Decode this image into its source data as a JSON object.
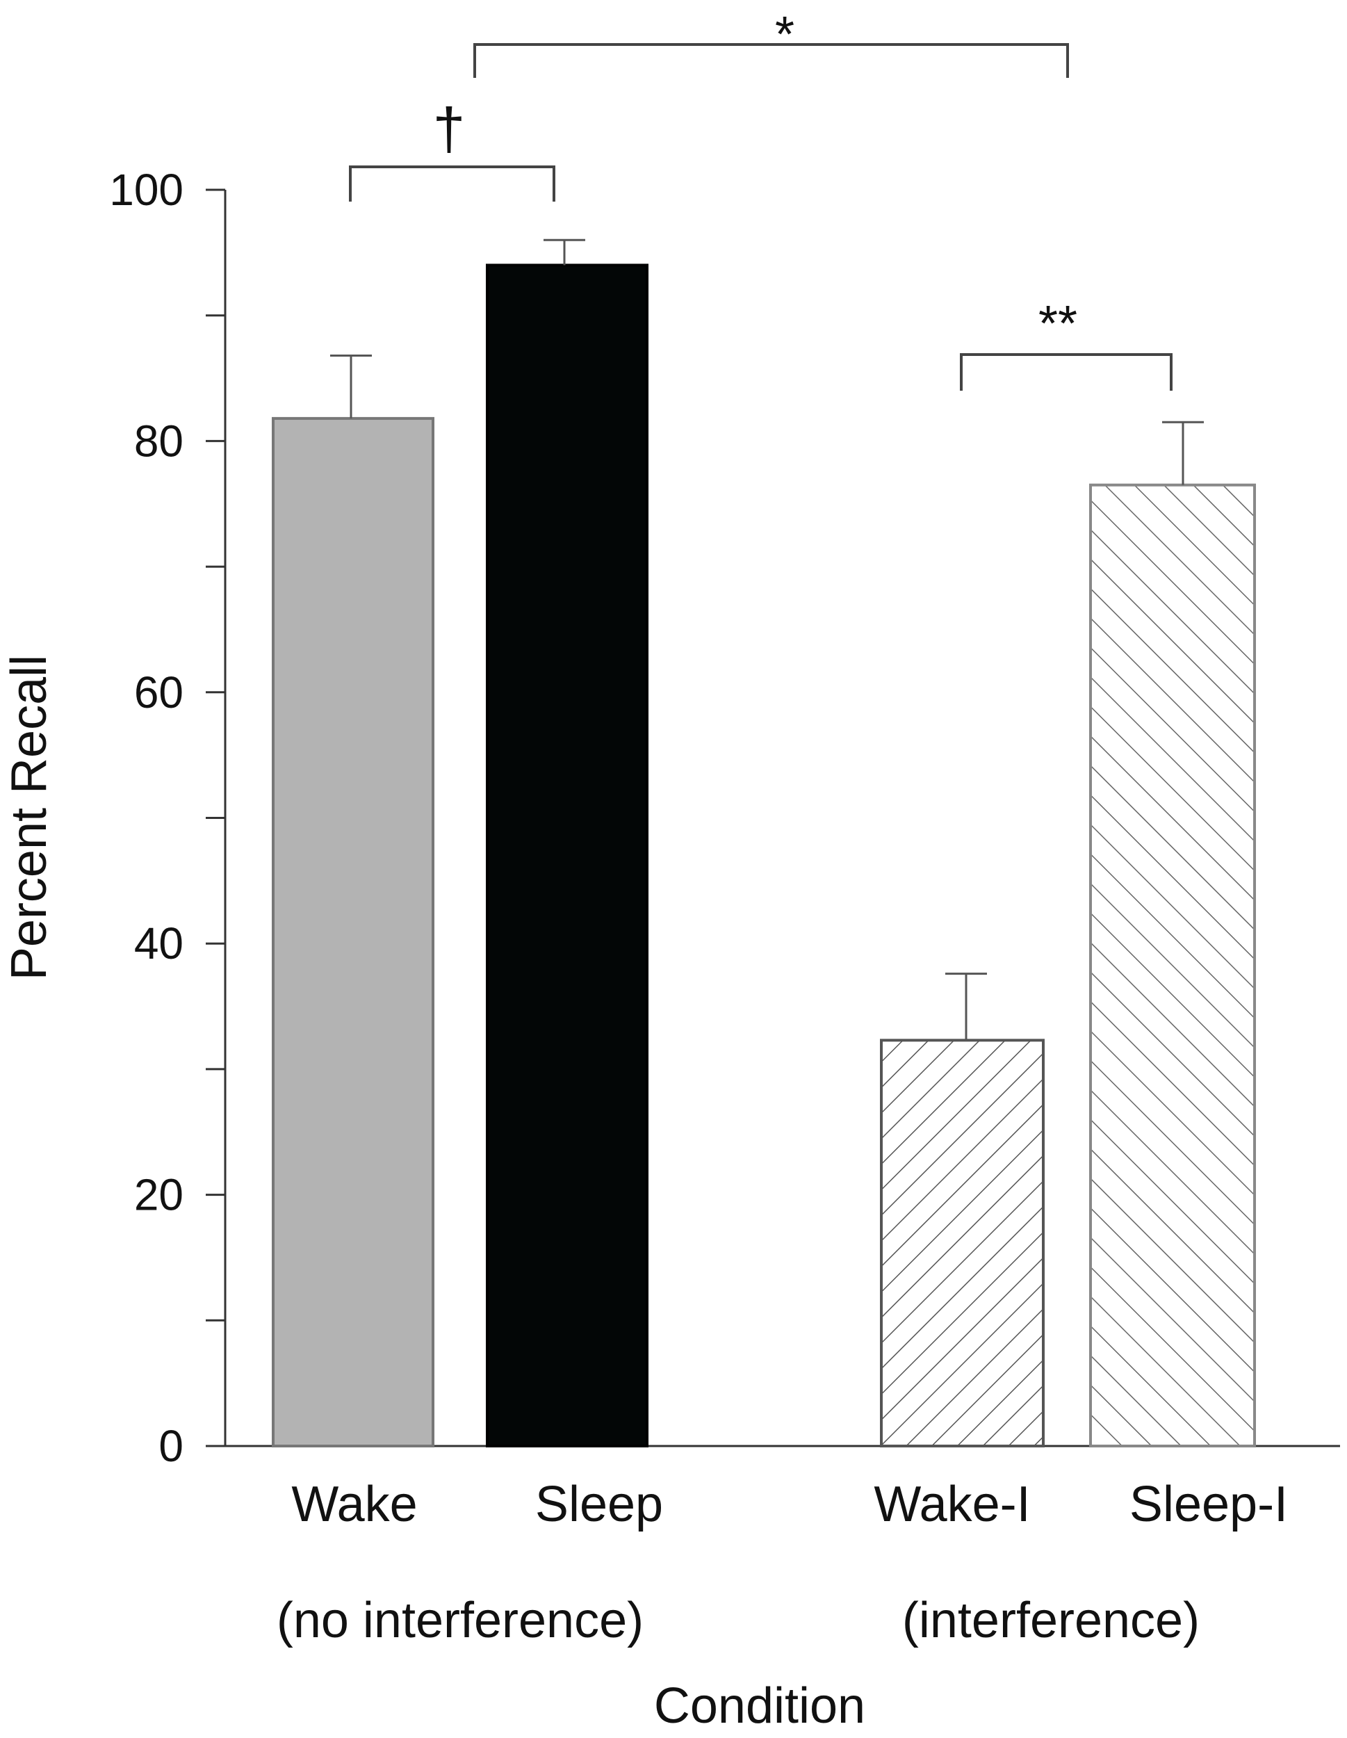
{
  "chart_data": {
    "type": "bar",
    "title": "",
    "xlabel": "Condition",
    "ylabel": "Percent Recall",
    "ylim": [
      0,
      100
    ],
    "yticks": [
      0,
      20,
      40,
      60,
      80,
      100
    ],
    "grid": false,
    "categories": [
      "Wake",
      "Sleep",
      "Wake-I",
      "Sleep-I"
    ],
    "values": [
      81.8,
      94.0,
      32.3,
      76.5
    ],
    "error_upper": [
      5.0,
      2.0,
      5.3,
      5.0
    ],
    "colors": [
      "#b3b3b3",
      "#030606",
      "hatch-back-diagonal",
      "hatch-forward-diagonal"
    ],
    "groups": [
      {
        "label": "(no interference)",
        "categories": [
          "Wake",
          "Sleep"
        ]
      },
      {
        "label": "(interference)",
        "categories": [
          "Wake-I",
          "Sleep-I"
        ]
      }
    ],
    "significance": [
      {
        "from": "Wake",
        "to": "Sleep",
        "symbol": "†"
      },
      {
        "from": "Wake-I",
        "to": "Sleep-I",
        "symbol": "**"
      },
      {
        "from": "no interference",
        "to": "interference",
        "symbol": "*"
      }
    ]
  }
}
